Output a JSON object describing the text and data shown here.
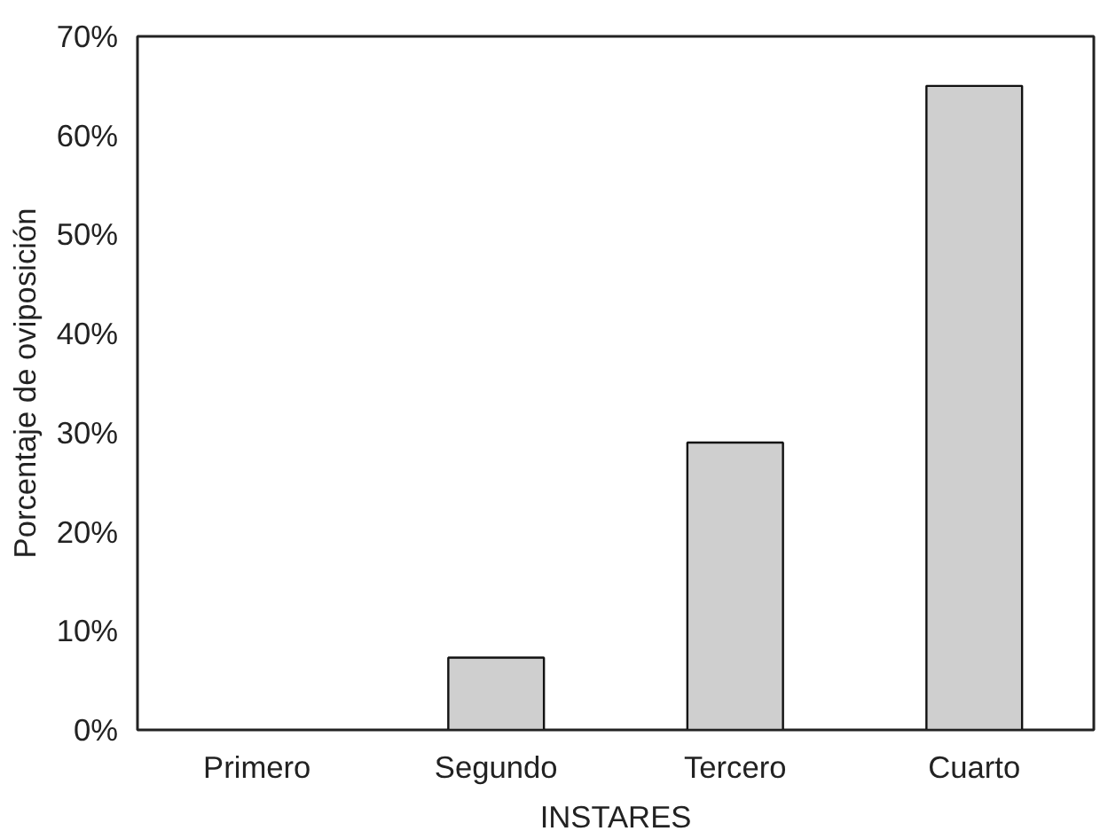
{
  "chart_data": {
    "type": "bar",
    "xlabel": "INSTARES",
    "ylabel": "Porcentaje de oviposición",
    "categories": [
      "Primero",
      "Segundo",
      "Tercero",
      "Cuarto"
    ],
    "values": [
      0,
      7.3,
      29,
      65
    ],
    "color": "#cfcfcf",
    "ylim": [
      0,
      70
    ],
    "yticks": [
      {
        "value": 0,
        "label": "0%"
      },
      {
        "value": 10,
        "label": "10%"
      },
      {
        "value": 20,
        "label": "20%"
      },
      {
        "value": 30,
        "label": "30%"
      },
      {
        "value": 40,
        "label": "40%"
      },
      {
        "value": 50,
        "label": "50%"
      },
      {
        "value": 60,
        "label": "60%"
      },
      {
        "value": 70,
        "label": "70%"
      }
    ],
    "grid": false
  }
}
